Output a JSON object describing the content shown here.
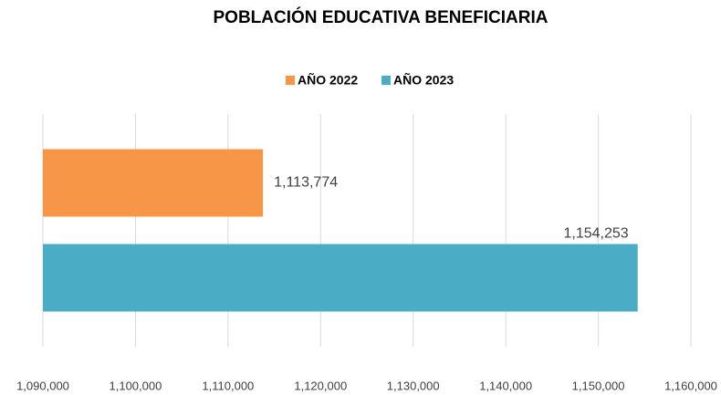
{
  "chart_data": {
    "type": "bar",
    "orientation": "horizontal",
    "title": "POBLACIÓN EDUCATIVA BENEFICIARIA",
    "categories": [
      null
    ],
    "series": [
      {
        "name": "AÑO 2022",
        "color": "#f79646",
        "values": [
          1113774
        ],
        "value_labels": [
          "1,113,774"
        ]
      },
      {
        "name": "AÑO 2023",
        "color": "#4bacc6",
        "values": [
          1154253
        ],
        "value_labels": [
          "1,154,253"
        ]
      }
    ],
    "xlim": [
      1090000,
      1160000
    ],
    "xticks": [
      {
        "value": 1090000,
        "label": "1,090,000"
      },
      {
        "value": 1100000,
        "label": "1,100,000"
      },
      {
        "value": 1110000,
        "label": "1,110,000"
      },
      {
        "value": 1120000,
        "label": "1,120,000"
      },
      {
        "value": 1130000,
        "label": "1,130,000"
      },
      {
        "value": 1140000,
        "label": "1,140,000"
      },
      {
        "value": 1150000,
        "label": "1,150,000"
      },
      {
        "value": 1160000,
        "label": "1,160,000"
      }
    ],
    "grid": true,
    "legend": "top"
  }
}
